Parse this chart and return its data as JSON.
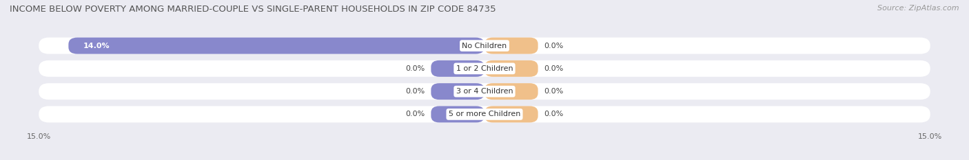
{
  "title": "INCOME BELOW POVERTY AMONG MARRIED-COUPLE VS SINGLE-PARENT HOUSEHOLDS IN ZIP CODE 84735",
  "source": "Source: ZipAtlas.com",
  "categories": [
    "No Children",
    "1 or 2 Children",
    "3 or 4 Children",
    "5 or more Children"
  ],
  "married_values": [
    14.0,
    0.0,
    0.0,
    0.0
  ],
  "single_values": [
    0.0,
    0.0,
    0.0,
    0.0
  ],
  "zero_bar_width": 1.8,
  "xlim": 15.0,
  "married_color": "#8888cc",
  "single_color": "#f0c08a",
  "bg_color": "#ebebf2",
  "row_bg_color": "#f5f5f8",
  "title_fontsize": 9.5,
  "source_fontsize": 8,
  "label_fontsize": 8,
  "category_fontsize": 8,
  "legend_fontsize": 8,
  "axis_label_fontsize": 8
}
